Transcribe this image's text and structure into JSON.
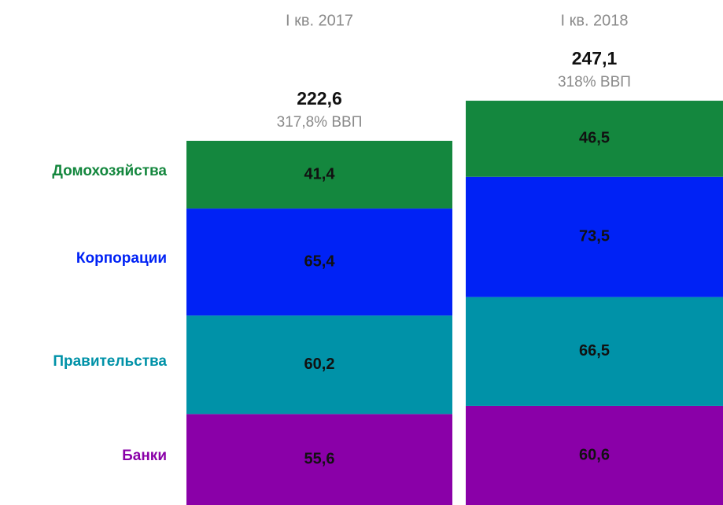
{
  "chart_data": {
    "type": "stacked_bar",
    "categories": [
      "I кв. 2017",
      "I кв. 2018"
    ],
    "series": [
      {
        "name": "Банки",
        "color": "#8a00a8",
        "values": [
          55.6,
          60.6
        ],
        "value_labels": [
          "55,6",
          "60,6"
        ]
      },
      {
        "name": "Правительства",
        "color": "#0092a8",
        "values": [
          60.2,
          66.5
        ],
        "value_labels": [
          "60,2",
          "66,5"
        ]
      },
      {
        "name": "Корпорации",
        "color": "#0022f5",
        "values": [
          65.4,
          73.5
        ],
        "value_labels": [
          "65,4",
          "73,5"
        ]
      },
      {
        "name": "Домохозяйства",
        "color": "#14873e",
        "values": [
          41.4,
          46.5
        ],
        "value_labels": [
          "41,4",
          "46,5"
        ]
      }
    ],
    "totals": [
      222.6,
      247.1
    ],
    "total_labels": [
      "222,6",
      "247,1"
    ],
    "gdp_labels": [
      "317,8% ВВП",
      "318% ВВП"
    ]
  }
}
